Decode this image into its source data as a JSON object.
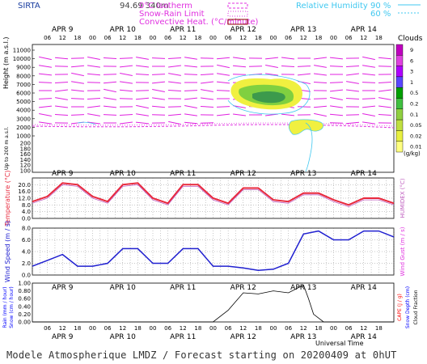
{
  "header": {
    "station": "SIRTA",
    "coords": "94.69 340m",
    "legend_isotherm": "0°C Isotherm",
    "legend_snowrain": "Snow-Rain Limit",
    "legend_convective": "Convective Heat. (°C/minute)",
    "legend_rh": "Relative Humidity",
    "rh_90": "90 %",
    "rh_60": "60 %",
    "clouds_title": "Clouds"
  },
  "axis_labels": {
    "height": "Height (m a.s.l.)",
    "up_to_200": "Up to 200 m a.s.l.",
    "temperature": "Temperature (°C)",
    "humidex": "HUMIDEX (°C)",
    "wind_speed": "Wind Speed (m / s)",
    "wind_gust": "Wind Gust (m / s)",
    "rain": "Rain (mm / hour)",
    "snow": "Snow (cm / hour)",
    "cape": "CAPE (J / g)",
    "snow_depth": "Snow Depth (cm)",
    "cloud_fraction": "Cloud Fraction",
    "universal_time": "Universal Time",
    "cloud_units": "(g/kg)"
  },
  "footer": "Modele Atmospherique LMDZ / Forecast starting on 20200409 at 0hUT",
  "colors": {
    "temperature": "#e8283c",
    "humidex": "#c060c0",
    "wind": "#2020d0",
    "wind_barbs": "#e020e0",
    "cape": "#ff0000",
    "snow": "#0000ff",
    "rh": "#40d8f0"
  },
  "chart_data": [
    {
      "type": "heatmap",
      "panel": "cloud-height",
      "days": [
        "APR 9",
        "APR 10",
        "APR 11",
        "APR 12",
        "APR 13",
        "APR 14"
      ],
      "hour_ticks": [
        "06",
        "12",
        "18",
        "00"
      ],
      "ylabel": "Height (m a.s.l.)",
      "y_ticks_upper": [
        1000,
        2000,
        3000,
        4000,
        5000,
        6000,
        7000,
        8000,
        9000,
        10000,
        11000
      ],
      "y_ticks_lower": [
        100,
        120,
        140,
        160,
        180,
        200
      ],
      "clouds_scale": [
        "9",
        "6",
        "3",
        "1",
        "0.5",
        "0.2",
        "0.1",
        "0.05",
        "0.02",
        "0.01"
      ],
      "cloud_scale_units": "(g/kg)"
    },
    {
      "type": "line",
      "panel": "temperature",
      "ylabel": "Temperature (°C)",
      "ylim": [
        0,
        24
      ],
      "y_ticks": [
        "0.0",
        "4.0",
        "8.0",
        "12.0",
        "16.0",
        "20.0"
      ],
      "x_hours": [
        0,
        6,
        12,
        18,
        24,
        30,
        36,
        42,
        48,
        54,
        60,
        66,
        72,
        78,
        84,
        90,
        96,
        102,
        108,
        114,
        120,
        126,
        132,
        138,
        144
      ],
      "series": [
        {
          "values": [
            10,
            13,
            21,
            20,
            13,
            10,
            20,
            21,
            12,
            9,
            20,
            20,
            12,
            9,
            18,
            18,
            11,
            10,
            15,
            15,
            11,
            8,
            12,
            12,
            9
          ]
        },
        {
          "values": [
            9,
            12,
            20,
            19,
            12,
            9,
            19,
            20,
            11,
            8,
            19,
            19,
            11,
            8,
            17,
            17,
            10,
            9,
            14,
            14,
            10,
            7,
            11,
            11,
            8
          ]
        }
      ]
    },
    {
      "type": "line",
      "panel": "wind",
      "ylabel": "Wind Speed (m / s)",
      "ylim": [
        0,
        8
      ],
      "y_ticks": [
        "0.0",
        "2.0",
        "4.0",
        "6.0",
        "8.0"
      ],
      "x_hours": [
        0,
        6,
        12,
        18,
        24,
        30,
        36,
        42,
        48,
        54,
        60,
        66,
        72,
        78,
        84,
        90,
        96,
        102,
        108,
        114,
        120,
        126,
        132,
        138,
        144
      ],
      "series": [
        {
          "values": [
            1.5,
            2.5,
            3.5,
            1.5,
            1.5,
            2,
            4.5,
            4.5,
            2,
            2,
            4.5,
            4.5,
            1.5,
            1.5,
            1.2,
            0.8,
            1,
            2,
            7,
            7.5,
            6,
            6,
            7.5,
            7.5,
            6.5
          ]
        }
      ]
    },
    {
      "type": "area",
      "panel": "precipitation",
      "ylim": [
        0,
        1.0
      ],
      "y_ticks": [
        "0.00",
        "0.20",
        "0.40",
        "0.60",
        "0.80",
        "1.00"
      ],
      "x_hours": [
        0,
        12,
        24,
        36,
        48,
        60,
        72,
        78,
        84,
        90,
        96,
        102,
        108,
        110,
        112,
        116,
        120,
        132,
        144
      ],
      "series": [
        {
          "values": [
            0,
            0,
            0,
            0,
            0,
            0,
            0,
            0.3,
            0.75,
            0.72,
            0.8,
            0.75,
            0.95,
            0.6,
            0.2,
            0,
            0,
            0,
            0
          ]
        }
      ]
    }
  ]
}
